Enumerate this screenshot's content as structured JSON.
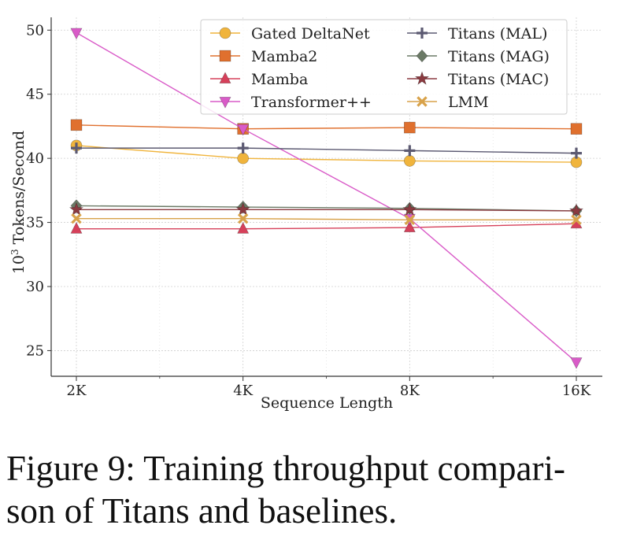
{
  "chart_data": {
    "type": "line",
    "xlabel": "Sequence Length",
    "ylabel_base": "10",
    "ylabel_exp": "3",
    "ylabel_rest": " Tokens/Second",
    "categories": [
      "2K",
      "4K",
      "8K",
      "16K"
    ],
    "ylim": [
      23,
      51
    ],
    "yticks": [
      25,
      30,
      35,
      40,
      45,
      50
    ],
    "grid": true,
    "legend_position": "top",
    "series": [
      {
        "name": "Gated DeltaNet",
        "marker": "circle",
        "color": "#f0b43c",
        "values": [
          41.0,
          40.0,
          39.8,
          39.7
        ]
      },
      {
        "name": "Mamba2",
        "marker": "square",
        "color": "#e0702e",
        "values": [
          42.6,
          42.3,
          42.4,
          42.3
        ]
      },
      {
        "name": "Mamba",
        "marker": "triangle-up",
        "color": "#d6405a",
        "values": [
          34.5,
          34.5,
          34.6,
          34.9
        ]
      },
      {
        "name": "Transformer++",
        "marker": "triangle-down",
        "color": "#d95bc8",
        "values": [
          49.8,
          42.3,
          35.3,
          24.1
        ]
      },
      {
        "name": "Titans (MAL)",
        "marker": "plus",
        "color": "#5c5a72",
        "values": [
          40.8,
          40.8,
          40.6,
          40.4
        ]
      },
      {
        "name": "Titans (MAG)",
        "marker": "diamond",
        "color": "#6b7a66",
        "values": [
          36.3,
          36.2,
          36.1,
          35.9
        ]
      },
      {
        "name": "Titans (MAC)",
        "marker": "star",
        "color": "#8a3a40",
        "values": [
          36.0,
          36.0,
          36.0,
          35.9
        ]
      },
      {
        "name": "LMM",
        "marker": "x",
        "color": "#d8a24a",
        "values": [
          35.3,
          35.3,
          35.2,
          35.2
        ]
      }
    ]
  },
  "caption": {
    "line1": "Figure 9: Training throughput compari-",
    "line2": "son of Titans and baselines."
  }
}
